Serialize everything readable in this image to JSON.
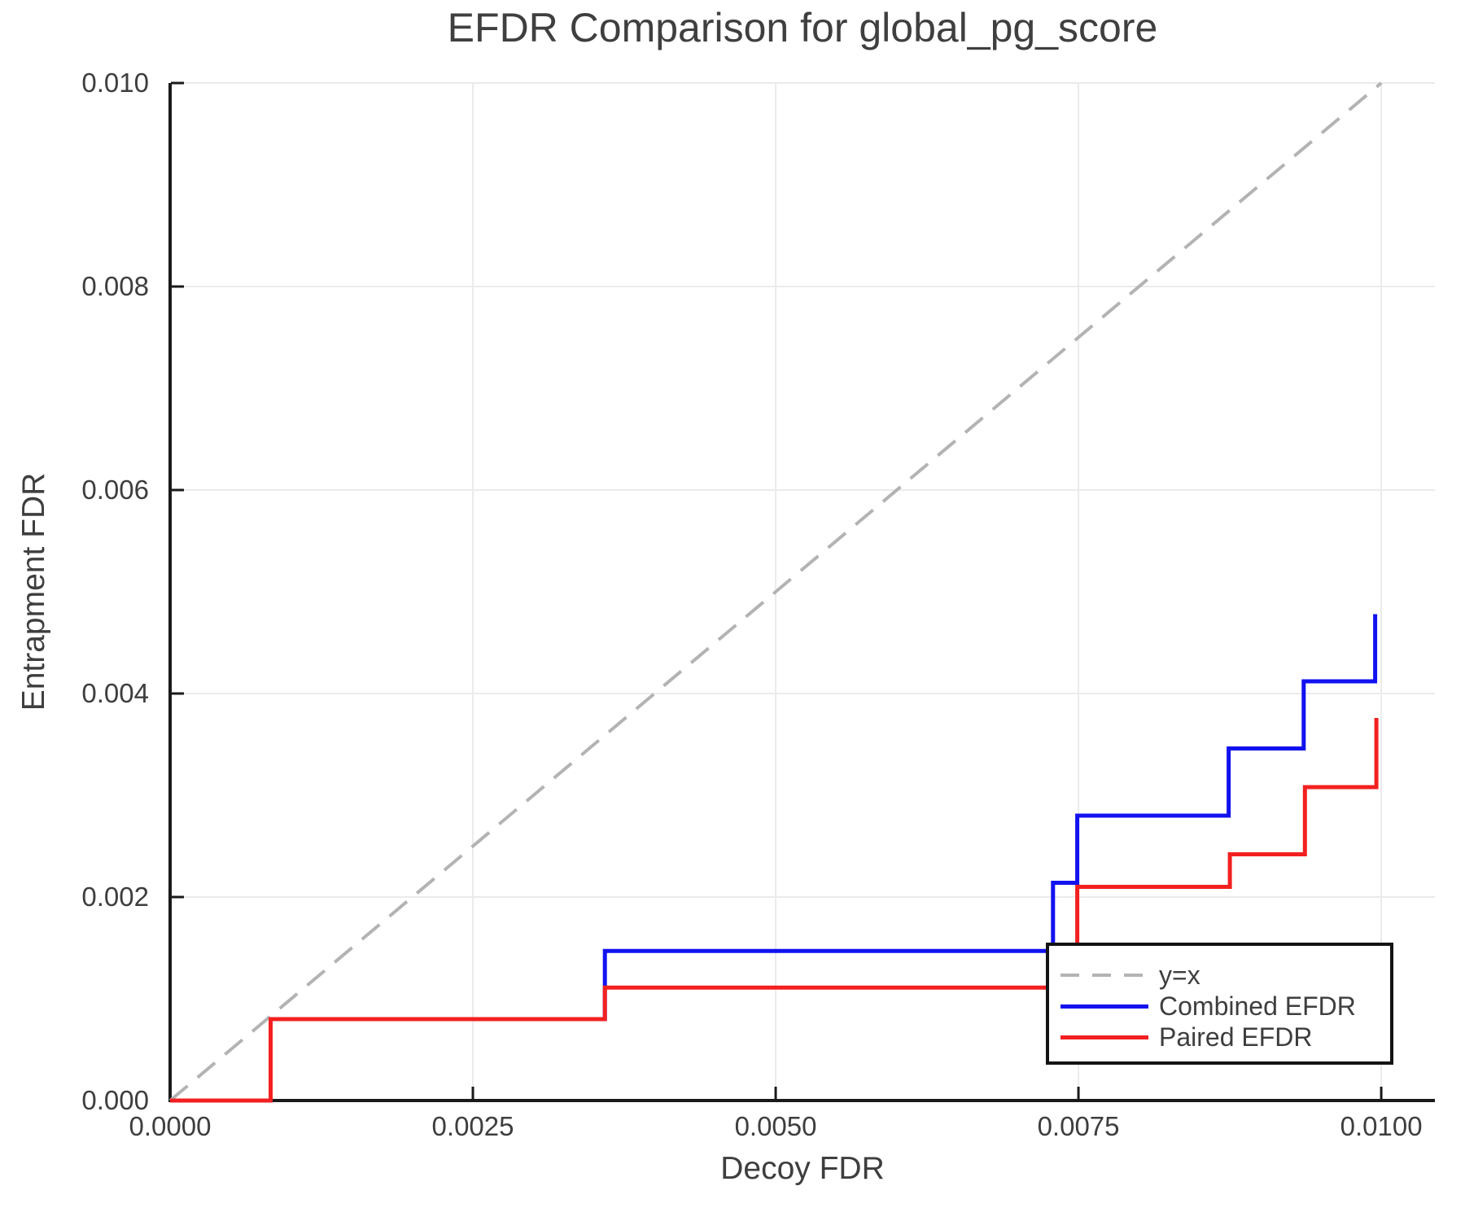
{
  "title": "EFDR Comparison for global_pg_score",
  "axes": {
    "x": {
      "label": "Decoy FDR",
      "ticks": [
        {
          "value": 0.0,
          "label": "0.0000"
        },
        {
          "value": 0.0025,
          "label": "0.0025"
        },
        {
          "value": 0.005,
          "label": "0.0050"
        },
        {
          "value": 0.0075,
          "label": "0.0075"
        },
        {
          "value": 0.01,
          "label": "0.0100"
        }
      ]
    },
    "y": {
      "label": "Entrapment FDR",
      "ticks": [
        {
          "value": 0.0,
          "label": "0.000"
        },
        {
          "value": 0.002,
          "label": "0.002"
        },
        {
          "value": 0.004,
          "label": "0.004"
        },
        {
          "value": 0.006,
          "label": "0.006"
        },
        {
          "value": 0.008,
          "label": "0.008"
        },
        {
          "value": 0.01,
          "label": "0.010"
        }
      ]
    }
  },
  "legend": {
    "items": [
      {
        "label": "y=x",
        "style": "dashed",
        "color": "#b3b3b3"
      },
      {
        "label": "Combined EFDR",
        "style": "solid",
        "color": "#1212f0"
      },
      {
        "label": "Paired EFDR",
        "style": "solid",
        "color": "#f32020"
      }
    ]
  },
  "colors": {
    "grid": "#ebebeb",
    "spine": "#1a1a1a",
    "text": "#3e3e3e",
    "title": "#3f3f3f",
    "dashed_line": "#b3b3b3",
    "combined": "#1212f0",
    "paired": "#f32020"
  },
  "chart_data": {
    "type": "line",
    "title": "EFDR Comparison for global_pg_score",
    "xlabel": "Decoy FDR",
    "ylabel": "Entrapment FDR",
    "xlim": [
      0,
      0.010443
    ],
    "ylim": [
      0,
      0.01
    ],
    "grid": true,
    "legend_position": "lower right",
    "series": [
      {
        "name": "y=x",
        "color": "#b3b3b3",
        "width": 4,
        "dash": "28 16",
        "points": [
          [
            0,
            0
          ],
          [
            0.01,
            0.01
          ]
        ]
      },
      {
        "name": "Combined EFDR",
        "color": "#1212f0",
        "width": 5,
        "points": [
          [
            0,
            0
          ],
          [
            0.00083,
            0
          ],
          [
            0.00083,
            0.0008
          ],
          [
            0.00359,
            0.0008
          ],
          [
            0.00359,
            0.00147
          ],
          [
            0.00729,
            0.00147
          ],
          [
            0.00729,
            0.00214
          ],
          [
            0.00749,
            0.00214
          ],
          [
            0.00749,
            0.0028
          ],
          [
            0.00874,
            0.0028
          ],
          [
            0.00874,
            0.00346
          ],
          [
            0.00936,
            0.00346
          ],
          [
            0.00936,
            0.00412
          ],
          [
            0.00995,
            0.00412
          ],
          [
            0.00995,
            0.00478
          ]
        ]
      },
      {
        "name": "Paired EFDR",
        "color": "#f32020",
        "width": 5,
        "points": [
          [
            0,
            0
          ],
          [
            0.00083,
            0
          ],
          [
            0.00083,
            0.0008
          ],
          [
            0.00359,
            0.0008
          ],
          [
            0.00359,
            0.00111
          ],
          [
            0.00749,
            0.00111
          ],
          [
            0.00749,
            0.0021
          ],
          [
            0.00875,
            0.0021
          ],
          [
            0.00875,
            0.00242
          ],
          [
            0.00937,
            0.00242
          ],
          [
            0.00937,
            0.00308
          ],
          [
            0.00996,
            0.00308
          ],
          [
            0.00996,
            0.00376
          ]
        ]
      }
    ]
  }
}
